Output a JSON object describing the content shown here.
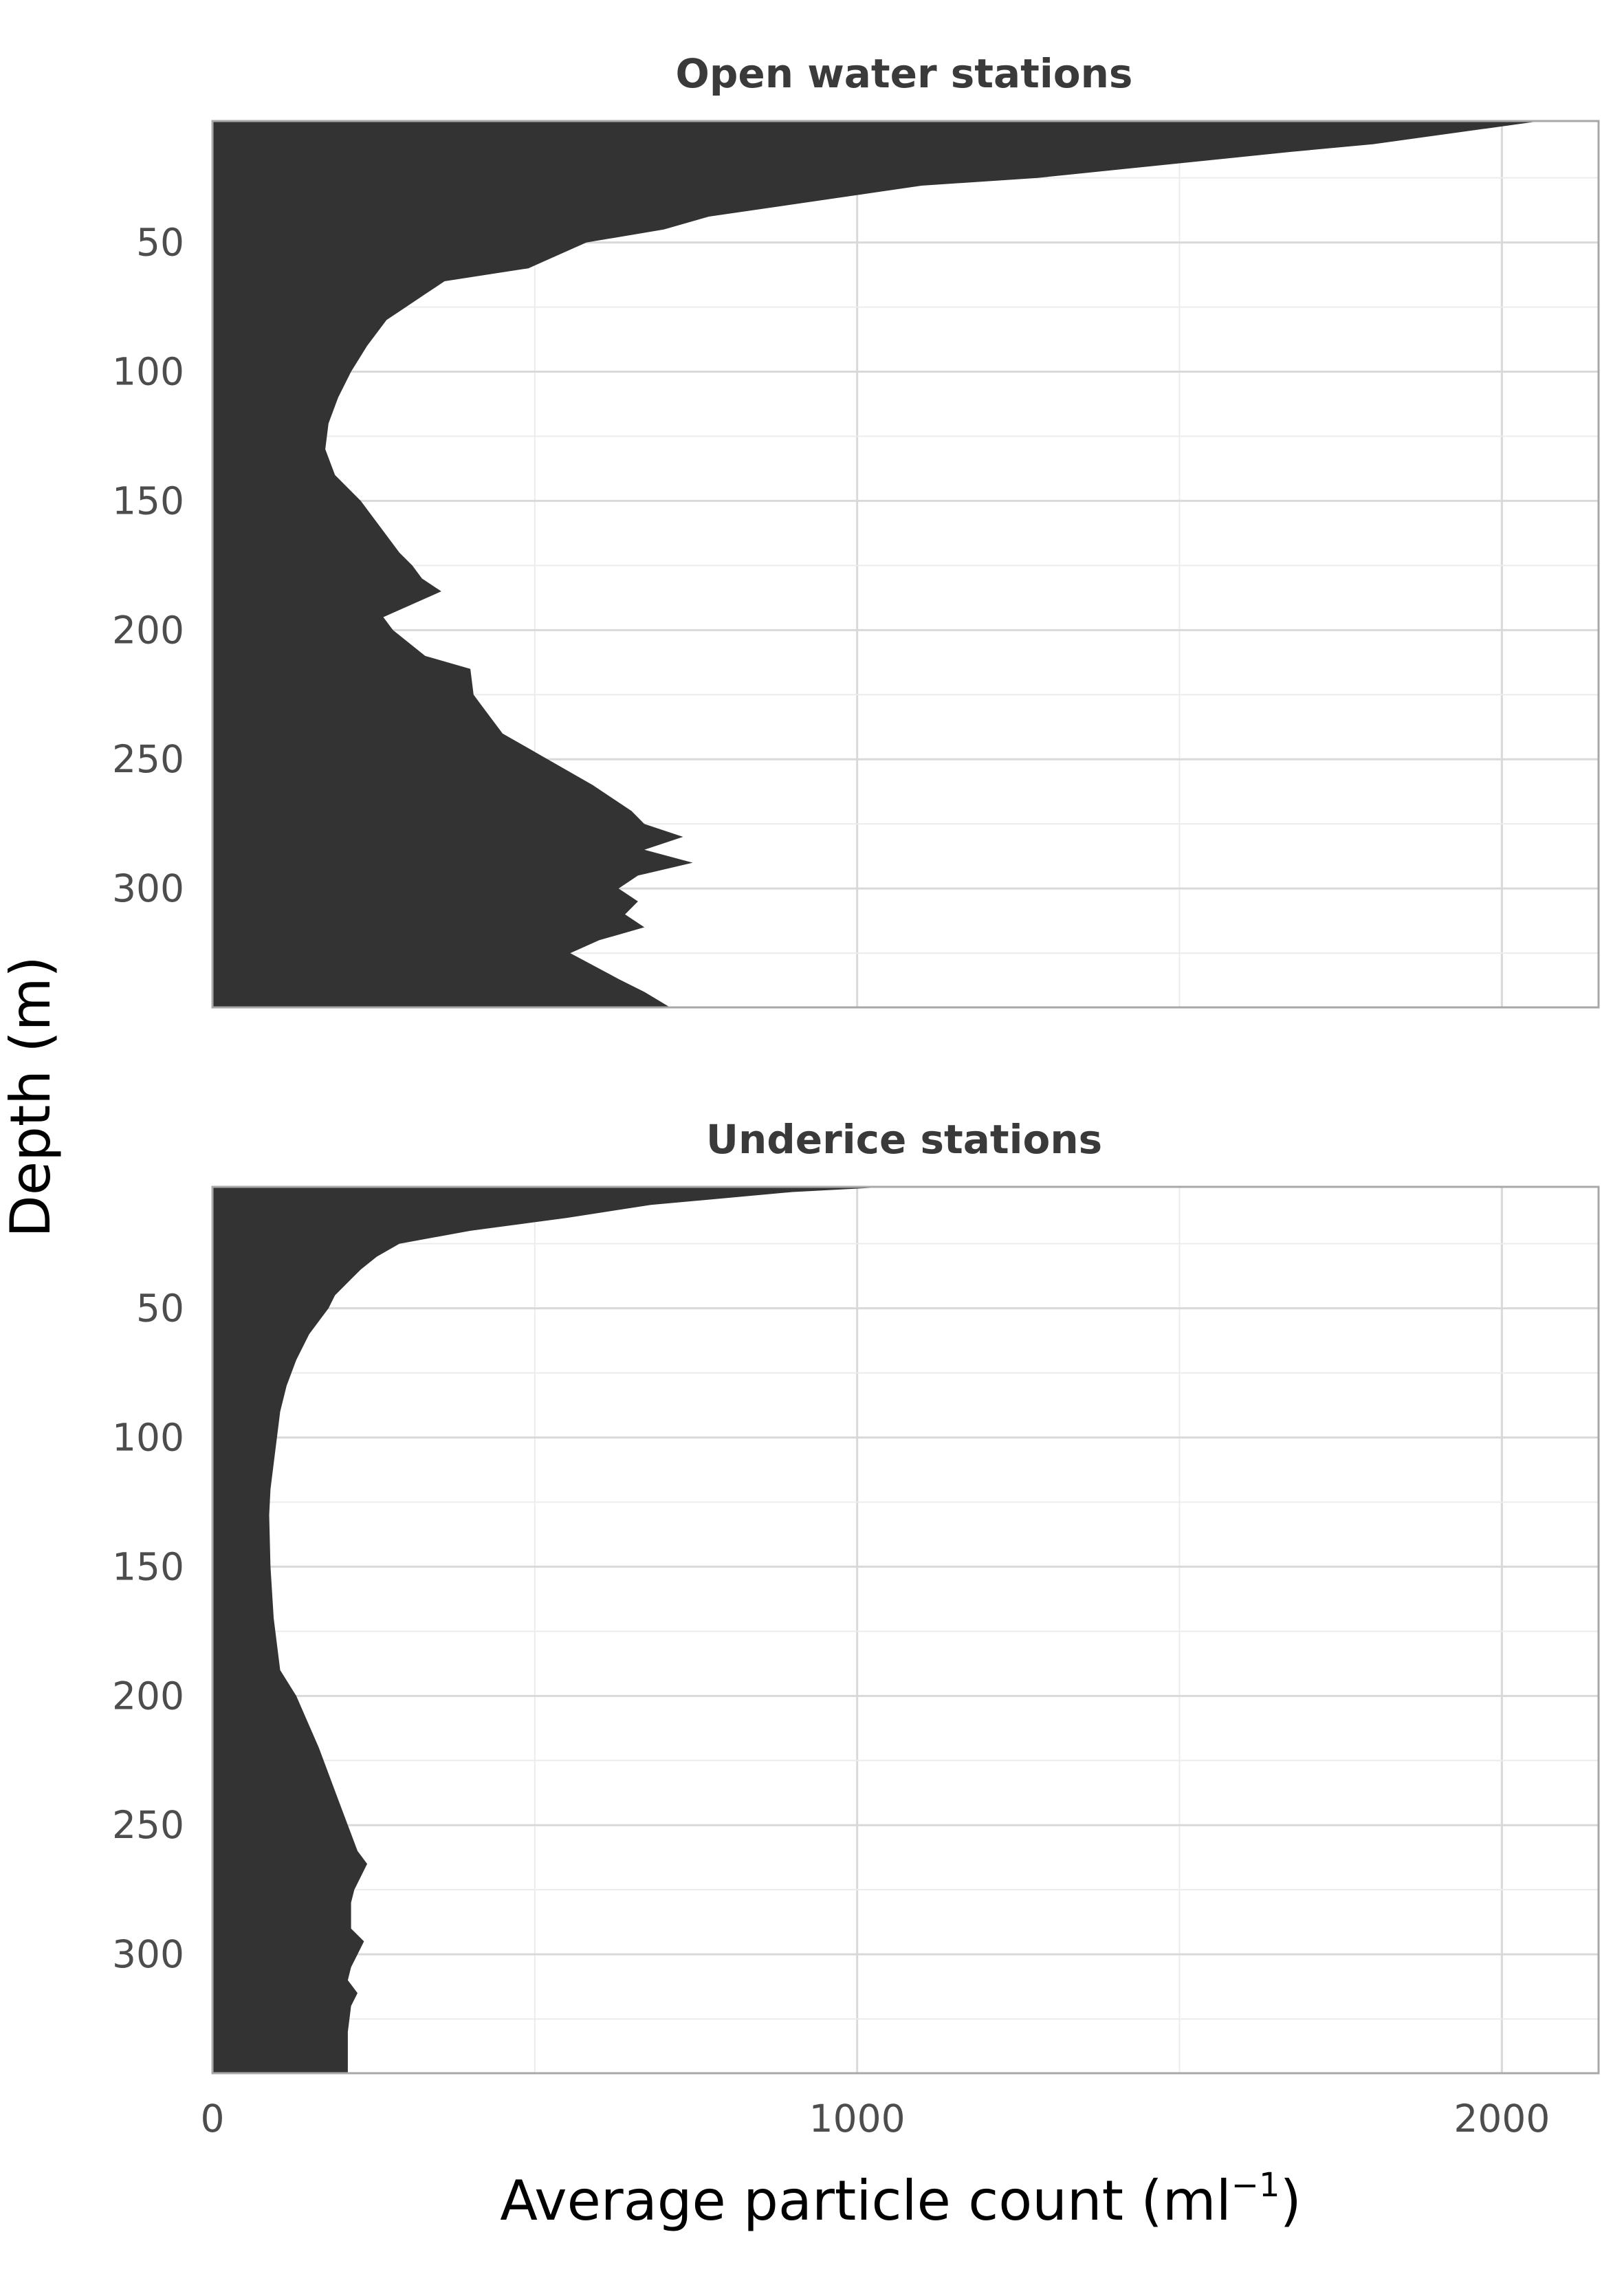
{
  "chart_data": {
    "type": "area",
    "xlabel": "Average particle count (ml",
    "xlabel_superscript": "−1",
    "xlabel_close": ")",
    "ylabel": "Depth (m)",
    "xlim": [
      0,
      2150
    ],
    "ylim": [
      3,
      346
    ],
    "y_reversed": true,
    "x_ticks": [
      0,
      1000,
      2000
    ],
    "x_tick_labels": [
      "0",
      "1000",
      "2000"
    ],
    "y_ticks": [
      50,
      100,
      150,
      200,
      250,
      300
    ],
    "y_tick_labels": [
      "50",
      "100",
      "150",
      "200",
      "250",
      "300"
    ],
    "grid": true,
    "colors": {
      "fill": "#333333",
      "grid": "#d9d9d9",
      "border": "#a8a8a8"
    },
    "panels": [
      {
        "title": "Open water stations",
        "depth": [
          3,
          12,
          15,
          25,
          28,
          40,
          45,
          50,
          60,
          65,
          70,
          75,
          80,
          90,
          100,
          110,
          120,
          130,
          140,
          150,
          160,
          170,
          175,
          180,
          185,
          190,
          195,
          200,
          210,
          215,
          225,
          230,
          240,
          250,
          260,
          265,
          270,
          275,
          280,
          285,
          290,
          295,
          300,
          305,
          310,
          315,
          320,
          325,
          335,
          340,
          346
        ],
        "count": [
          2060,
          1800,
          1670,
          1280,
          1100,
          770,
          700,
          580,
          490,
          360,
          330,
          300,
          270,
          240,
          215,
          195,
          180,
          175,
          190,
          230,
          260,
          290,
          310,
          325,
          355,
          310,
          265,
          280,
          330,
          400,
          405,
          420,
          450,
          520,
          590,
          620,
          650,
          670,
          730,
          670,
          745,
          660,
          630,
          660,
          640,
          670,
          600,
          555,
          630,
          670,
          710
        ]
      },
      {
        "title": "Underice stations",
        "depth": [
          3,
          5,
          10,
          15,
          20,
          25,
          30,
          35,
          40,
          45,
          50,
          60,
          70,
          80,
          90,
          100,
          110,
          120,
          130,
          150,
          170,
          190,
          200,
          220,
          240,
          250,
          260,
          265,
          270,
          275,
          280,
          290,
          295,
          300,
          305,
          310,
          315,
          320,
          330,
          340,
          346
        ],
        "count": [
          1050,
          900,
          680,
          550,
          400,
          290,
          255,
          230,
          210,
          190,
          180,
          150,
          130,
          115,
          105,
          100,
          95,
          90,
          88,
          90,
          95,
          105,
          130,
          165,
          195,
          210,
          225,
          240,
          230,
          220,
          215,
          215,
          235,
          225,
          215,
          210,
          225,
          215,
          210,
          210,
          210
        ]
      }
    ]
  }
}
